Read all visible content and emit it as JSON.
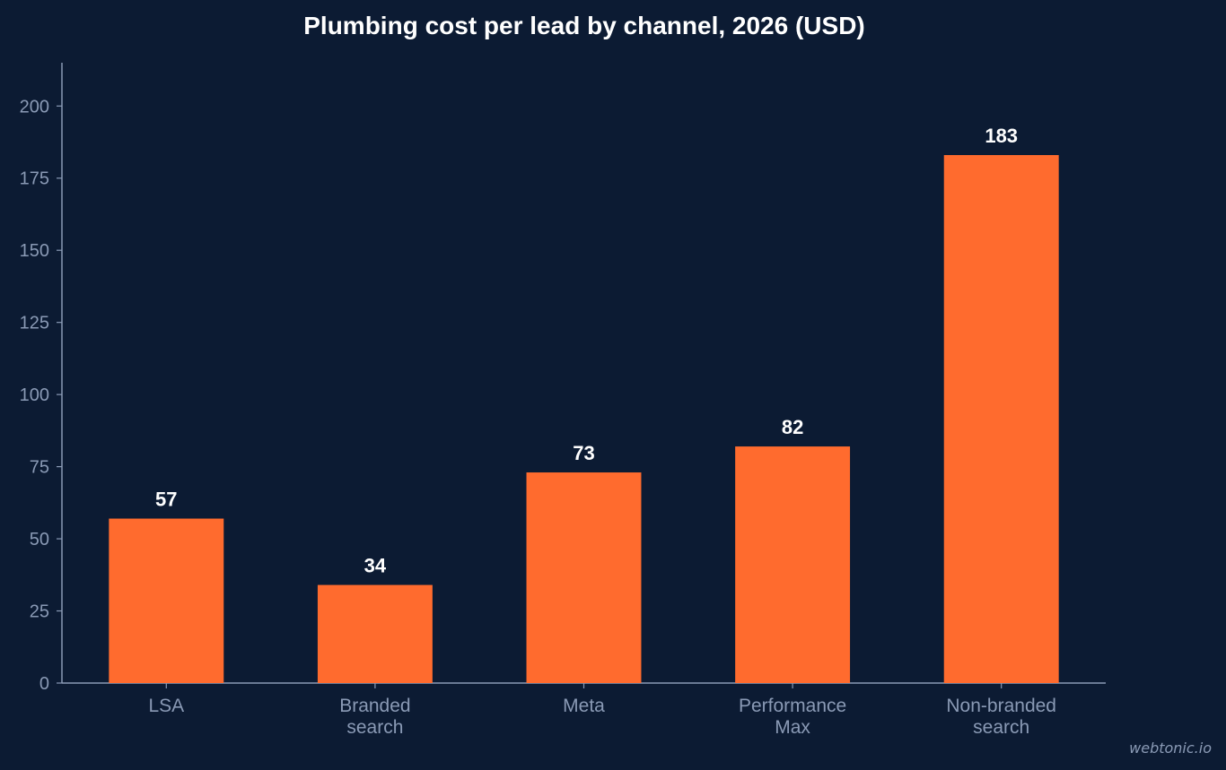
{
  "chart_data": {
    "type": "bar",
    "title": "Plumbing cost per lead by channel, 2026 (USD)",
    "categories": [
      [
        "LSA"
      ],
      [
        "Branded",
        "search"
      ],
      [
        "Meta"
      ],
      [
        "Performance",
        "Max"
      ],
      [
        "Non-branded",
        "search"
      ]
    ],
    "values": [
      57,
      34,
      73,
      82,
      183
    ],
    "value_labels": [
      "57",
      "34",
      "73",
      "82",
      "183"
    ],
    "yticks": [
      0,
      25,
      50,
      75,
      100,
      125,
      150,
      175,
      200
    ],
    "ytick_labels": [
      "0",
      "25",
      "50",
      "75",
      "100",
      "125",
      "150",
      "175",
      "200"
    ],
    "ylim": [
      0,
      215
    ],
    "xlabel": "",
    "ylabel": "",
    "grid": false,
    "bar_color": "#ff6b2e",
    "background": "#0c1b33",
    "axis_color": "#8a9ab5"
  },
  "watermark": "webtonic.io"
}
